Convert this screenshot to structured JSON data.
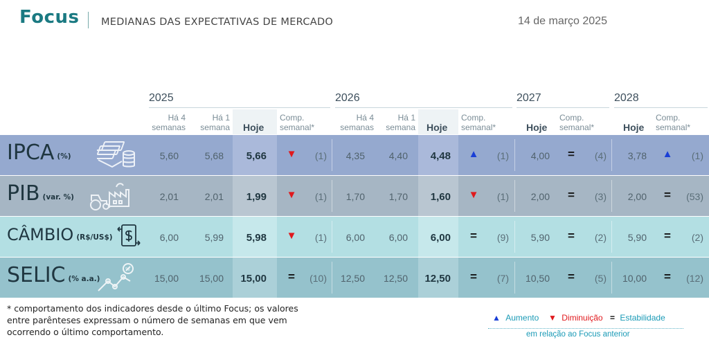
{
  "header": {
    "brand": "Focus",
    "subtitle": "MEDIANAS DAS EXPECTATIVAS DE MERCADO",
    "date": "14 de março 2025"
  },
  "columns": {
    "years": [
      "2025",
      "2026",
      "2027",
      "2028"
    ],
    "ha4_l1": "Há 4",
    "ha4_l2": "semanas",
    "ha1_l1": "Há 1",
    "ha1_l2": "semana",
    "hoje": "Hoje",
    "comp_l1": "Comp.",
    "comp_l2": "semanal*"
  },
  "rows": [
    {
      "name": "IPCA",
      "unit": "(%)",
      "bg": "#95a9cf",
      "hoje_bg": "#aab9da",
      "icon": "money-stack-icon",
      "y2025": {
        "ha4": "5,60",
        "ha1": "5,68",
        "hoje": "5,66",
        "trend": "down",
        "weeks": "(1)"
      },
      "y2026": {
        "ha4": "4,35",
        "ha1": "4,40",
        "hoje": "4,48",
        "trend": "up",
        "weeks": "(1)"
      },
      "y2027": {
        "hoje": "4,00",
        "trend": "eq",
        "weeks": "(4)"
      },
      "y2028": {
        "hoje": "3,78",
        "trend": "up",
        "weeks": "(1)"
      }
    },
    {
      "name": "PIB",
      "unit": "(var. %)",
      "bg": "#a6b6c4",
      "hoje_bg": "#b9c6d1",
      "icon": "industry-tractor-icon",
      "y2025": {
        "ha4": "2,01",
        "ha1": "2,01",
        "hoje": "1,99",
        "trend": "down",
        "weeks": "(1)"
      },
      "y2026": {
        "ha4": "1,70",
        "ha1": "1,70",
        "hoje": "1,60",
        "trend": "down",
        "weeks": "(1)"
      },
      "y2027": {
        "hoje": "2,00",
        "trend": "eq",
        "weeks": "(3)"
      },
      "y2028": {
        "hoje": "2,00",
        "trend": "eq",
        "weeks": "(53)"
      }
    },
    {
      "name": "CÂMBIO",
      "unit": "(R$/US$)",
      "bg": "#b3dfe3",
      "hoje_bg": "#c6e8eb",
      "icon": "exchange-icon",
      "y2025": {
        "ha4": "6,00",
        "ha1": "5,99",
        "hoje": "5,98",
        "trend": "down",
        "weeks": "(1)"
      },
      "y2026": {
        "ha4": "6,00",
        "ha1": "6,00",
        "hoje": "6,00",
        "trend": "eq",
        "weeks": "(9)"
      },
      "y2027": {
        "hoje": "5,90",
        "trend": "eq",
        "weeks": "(2)"
      },
      "y2028": {
        "hoje": "5,90",
        "trend": "eq",
        "weeks": "(2)"
      }
    },
    {
      "name": "SELIC",
      "unit": "(% a.a.)",
      "bg": "#95c2cc",
      "hoje_bg": "#abd0d8",
      "icon": "rate-chart-icon",
      "y2025": {
        "ha4": "15,00",
        "ha1": "15,00",
        "hoje": "15,00",
        "trend": "eq",
        "weeks": "(10)"
      },
      "y2026": {
        "ha4": "12,50",
        "ha1": "12,50",
        "hoje": "12,50",
        "trend": "eq",
        "weeks": "(7)"
      },
      "y2027": {
        "hoje": "10,50",
        "trend": "eq",
        "weeks": "(5)"
      },
      "y2028": {
        "hoje": "10,00",
        "trend": "eq",
        "weeks": "(12)"
      }
    }
  ],
  "footnote": "* comportamento dos indicadores desde o último Focus; os valores entre parênteses expressam o número de semanas em que vem ocorrendo o último comportamento.",
  "legend": {
    "up_label": "Aumento",
    "down_label": "Diminuição",
    "eq_label": "Estabilidade",
    "note": "em relação ao Focus anterior"
  },
  "symbols": {
    "up": "▲",
    "down": "▼",
    "eq": "="
  }
}
